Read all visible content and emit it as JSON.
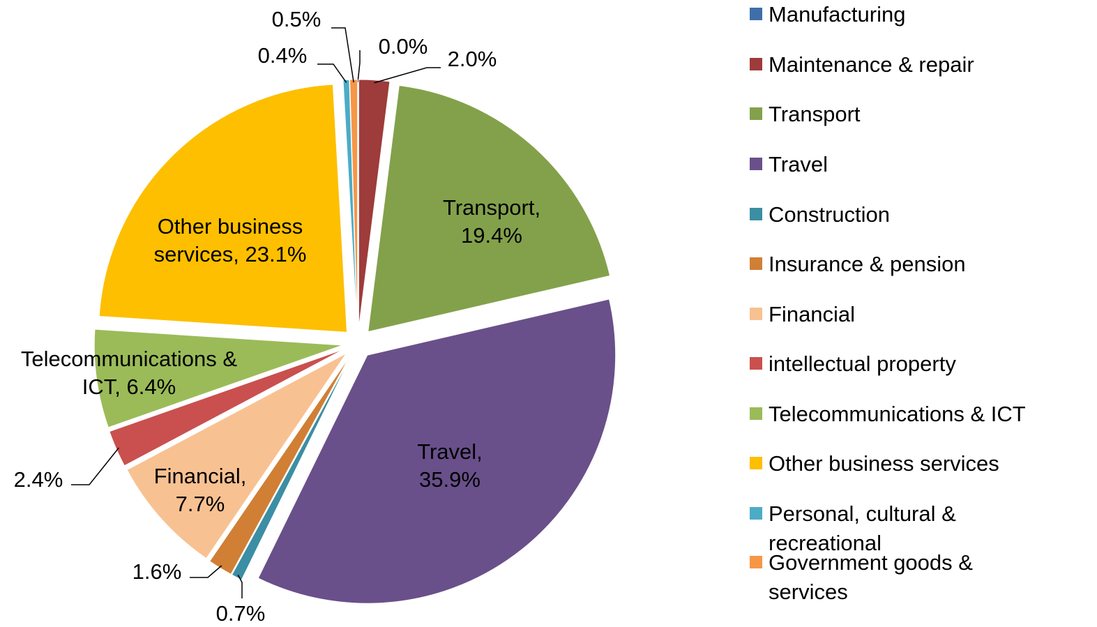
{
  "chart_data": {
    "type": "pie",
    "categories": [
      "Manufacturing",
      "Maintenance & repair",
      "Transport",
      "Travel",
      "Construction",
      "Insurance & pension",
      "Financial",
      "intellectual property",
      "Telecommunications & ICT",
      "Other business services",
      "Personal, cultural & recreational",
      "Government goods & services"
    ],
    "values": [
      0.0,
      2.0,
      19.4,
      35.9,
      0.7,
      1.6,
      7.7,
      2.4,
      6.4,
      23.1,
      0.4,
      0.5
    ],
    "value_labels": [
      "0.0%",
      "2.0%",
      "Transport, 19.4%",
      "Travel, 35.9%",
      "0.7%",
      "1.6%",
      "Financial, 7.7%",
      "2.4%",
      "Telecommunications & ICT, 6.4%",
      "Other business services, 23.1%",
      "0.4%",
      "0.5%"
    ],
    "colors": [
      "#3f6fa8",
      "#9e3b3b",
      "#83a14b",
      "#69508a",
      "#3b8ea3",
      "#d07f35",
      "#f8c192",
      "#c9504e",
      "#9bbb59",
      "#fdbf00",
      "#4bacc6",
      "#f79646"
    ],
    "legend": "right"
  }
}
